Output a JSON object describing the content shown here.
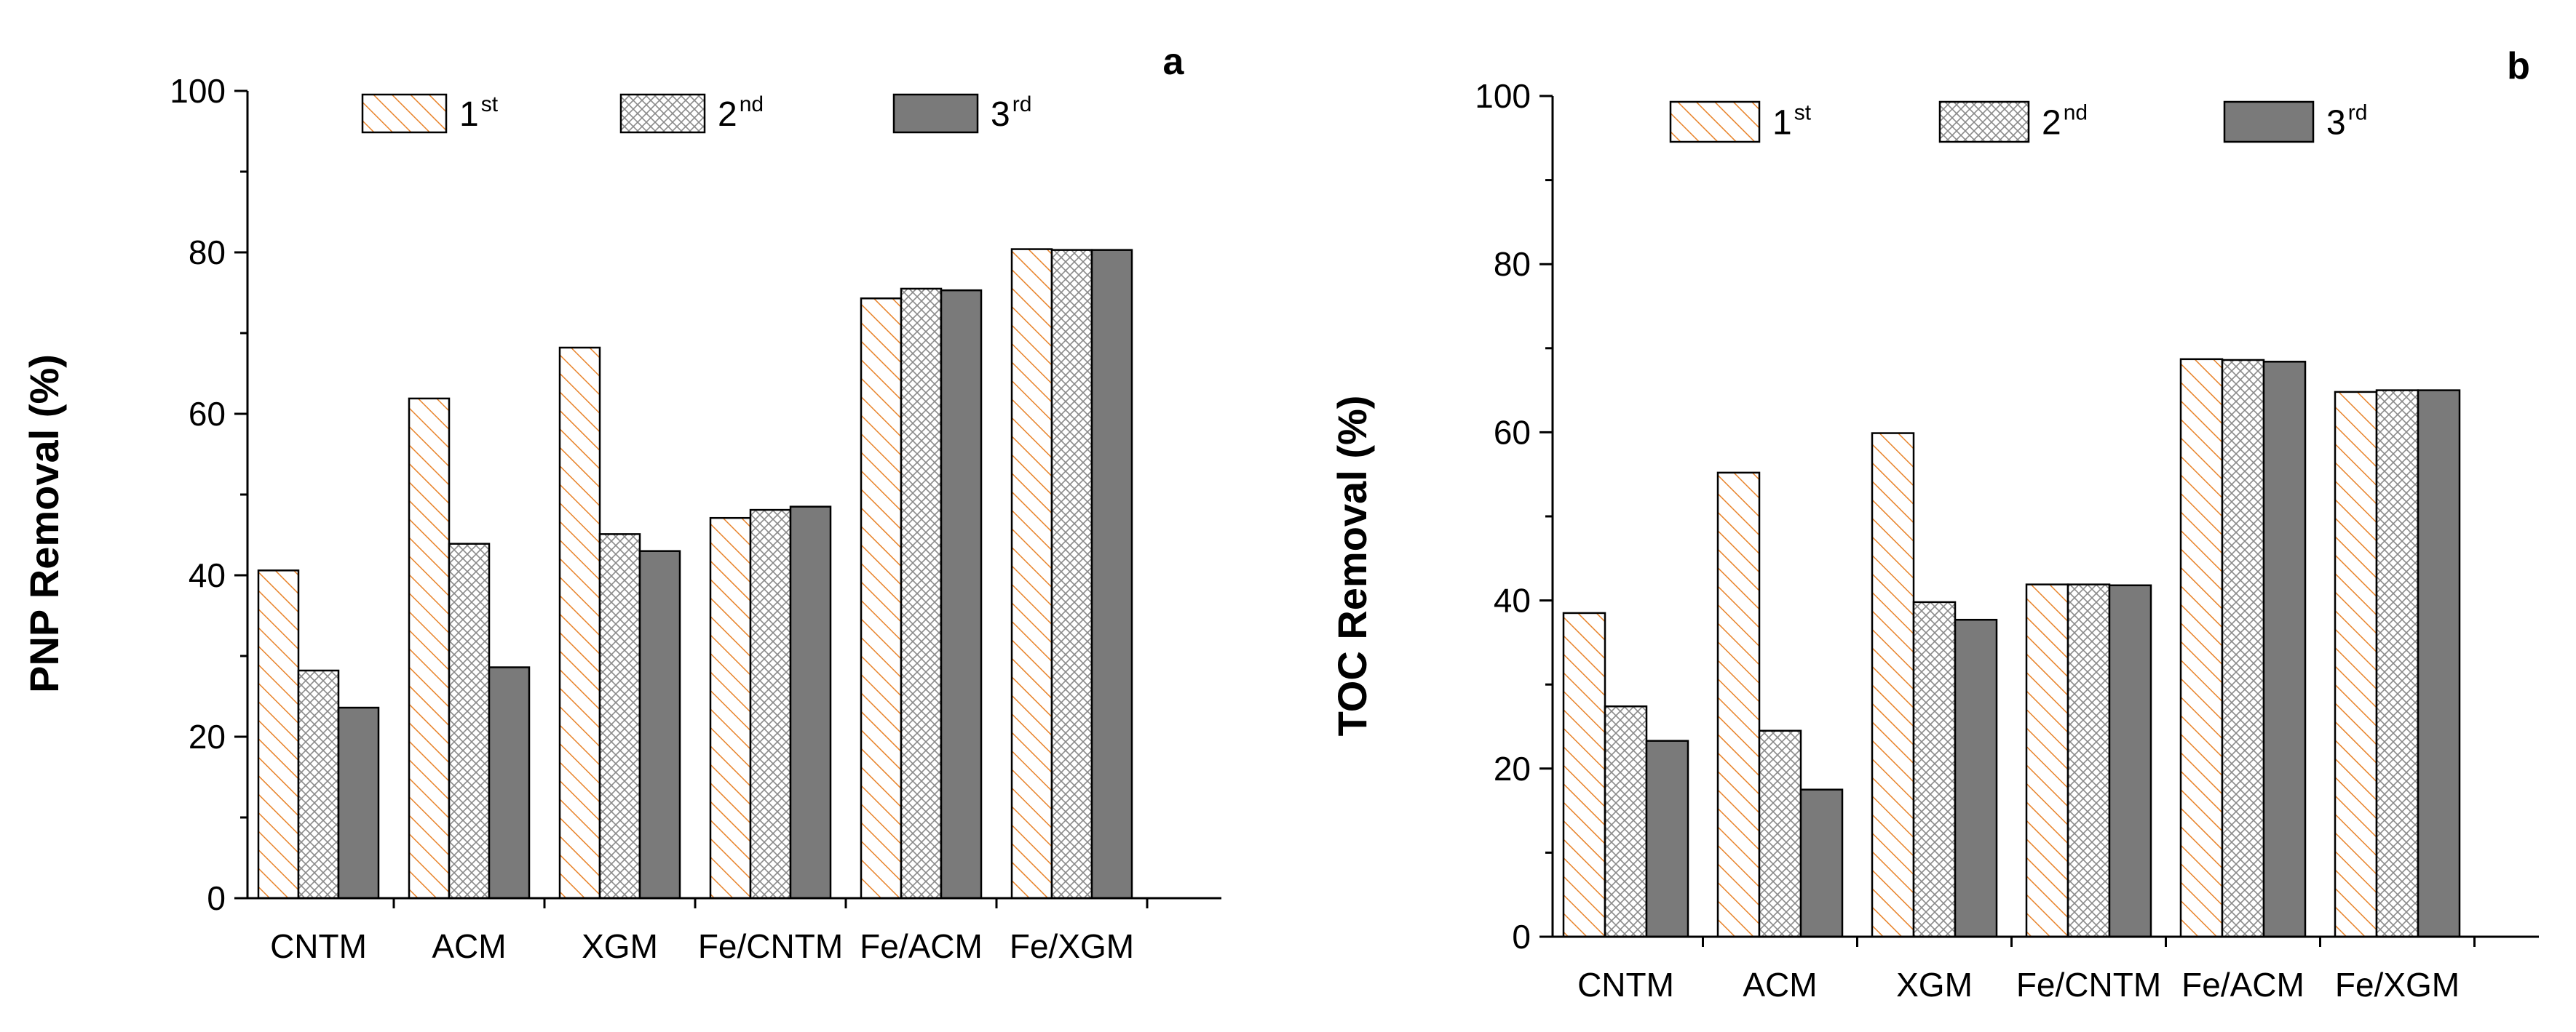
{
  "chart_data": [
    {
      "type": "bar",
      "panel_label": "a",
      "title": "",
      "xlabel": "",
      "ylabel": "PNP Removal (%)",
      "ylim": [
        0,
        100
      ],
      "yticks": [
        0,
        20,
        40,
        60,
        80,
        100
      ],
      "grid": false,
      "legend_position": "top",
      "categories": [
        "CNTM",
        "ACM",
        "XGM",
        "Fe/CNTM",
        "Fe/ACM",
        "Fe/XGM"
      ],
      "series": [
        {
          "name": "1st",
          "label_main": "1",
          "label_sup": "st",
          "pattern": "hatch",
          "values": [
            40.6,
            61.9,
            68.2,
            47.1,
            74.3,
            80.4
          ]
        },
        {
          "name": "2nd",
          "label_main": "2",
          "label_sup": "nd",
          "pattern": "crosshatch",
          "values": [
            28.2,
            43.9,
            45.1,
            48.1,
            75.5,
            80.3
          ]
        },
        {
          "name": "3rd",
          "label_main": "3",
          "label_sup": "rd",
          "pattern": "solid",
          "values": [
            23.6,
            28.6,
            43.0,
            48.5,
            75.3,
            80.3
          ]
        }
      ]
    },
    {
      "type": "bar",
      "panel_label": "b",
      "title": "",
      "xlabel": "",
      "ylabel": "TOC Removal (%)",
      "ylim": [
        0,
        100
      ],
      "yticks": [
        0,
        20,
        40,
        60,
        80,
        100
      ],
      "grid": false,
      "legend_position": "top",
      "categories": [
        "CNTM",
        "ACM",
        "XGM",
        "Fe/CNTM",
        "Fe/ACM",
        "Fe/XGM"
      ],
      "series": [
        {
          "name": "1st",
          "label_main": "1",
          "label_sup": "st",
          "pattern": "hatch",
          "values": [
            38.5,
            55.2,
            59.9,
            41.9,
            68.7,
            64.8
          ]
        },
        {
          "name": "2nd",
          "label_main": "2",
          "label_sup": "nd",
          "pattern": "crosshatch",
          "values": [
            27.4,
            24.5,
            39.8,
            41.9,
            68.6,
            65.0
          ]
        },
        {
          "name": "3rd",
          "label_main": "3",
          "label_sup": "rd",
          "pattern": "solid",
          "values": [
            23.3,
            17.5,
            37.7,
            41.8,
            68.4,
            65.0
          ]
        }
      ]
    }
  ],
  "colors": {
    "hatch_stroke": "#E8832A",
    "crosshatch_stroke": "#8a8a8a",
    "solid_fill": "#7a7a7a",
    "bar_outline": "#000000"
  }
}
